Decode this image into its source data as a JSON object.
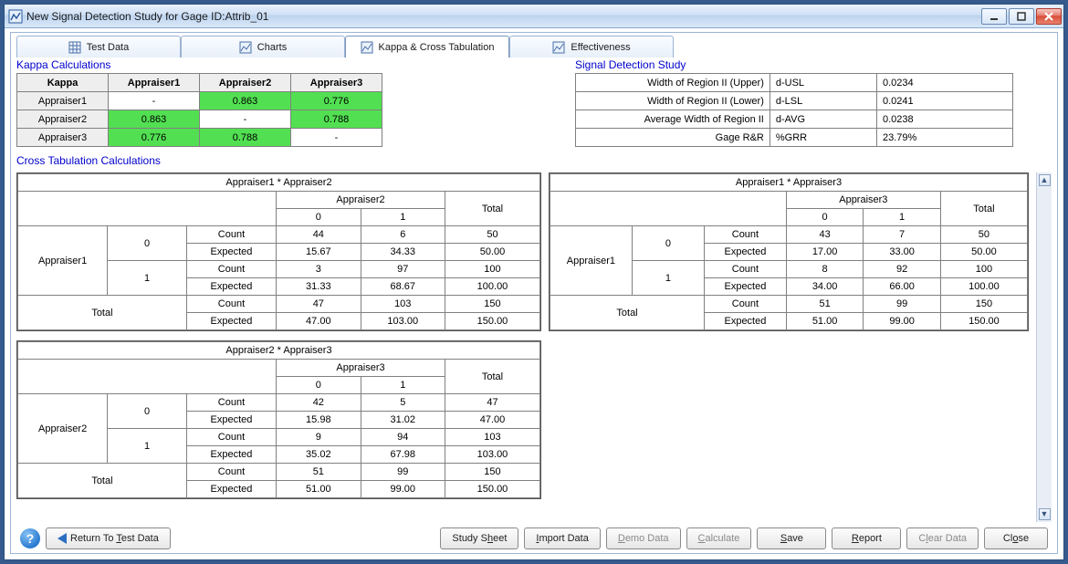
{
  "window": {
    "title": "New Signal Detection Study for Gage ID:Attrib_01"
  },
  "tabs": {
    "test_data": "Test Data",
    "charts": "Charts",
    "kappa": "Kappa & Cross Tabulation",
    "effectiveness": "Effectiveness"
  },
  "sections": {
    "kappa_calc": "Kappa Calculations",
    "sds": "Signal Detection Study",
    "cross": "Cross Tabulation Calculations"
  },
  "kappa": {
    "header": "Kappa",
    "appraisers": [
      "Appraiser1",
      "Appraiser2",
      "Appraiser3"
    ],
    "matrix": [
      [
        "-",
        "0.863",
        "0.776"
      ],
      [
        "0.863",
        "-",
        "0.788"
      ],
      [
        "0.776",
        "0.788",
        "-"
      ]
    ],
    "highlight": [
      [
        false,
        true,
        true
      ],
      [
        true,
        false,
        true
      ],
      [
        true,
        true,
        false
      ]
    ],
    "hl_color": "#52e052"
  },
  "sds": {
    "rows": [
      {
        "label": "Width of Region II (Upper)",
        "code": "d-USL",
        "value": "0.0234"
      },
      {
        "label": "Width of Region II (Lower)",
        "code": "d-LSL",
        "value": "0.0241"
      },
      {
        "label": "Average Width of Region II",
        "code": "d-AVG",
        "value": "0.0238"
      },
      {
        "label": "Gage R&R",
        "code": "%GRR",
        "value": "23.79%"
      }
    ]
  },
  "ctabs": {
    "labels": {
      "count": "Count",
      "expected": "Expected",
      "total": "Total"
    },
    "tables": [
      {
        "title": "Appraiser1 * Appraiser2",
        "row_appr": "Appraiser1",
        "col_appr": "Appraiser2",
        "cats": [
          "0",
          "1"
        ],
        "data": {
          "0": {
            "count": [
              "44",
              "6",
              "50"
            ],
            "expected": [
              "15.67",
              "34.33",
              "50.00"
            ]
          },
          "1": {
            "count": [
              "3",
              "97",
              "100"
            ],
            "expected": [
              "31.33",
              "68.67",
              "100.00"
            ]
          },
          "total": {
            "count": [
              "47",
              "103",
              "150"
            ],
            "expected": [
              "47.00",
              "103.00",
              "150.00"
            ]
          }
        }
      },
      {
        "title": "Appraiser1 * Appraiser3",
        "row_appr": "Appraiser1",
        "col_appr": "Appraiser3",
        "cats": [
          "0",
          "1"
        ],
        "data": {
          "0": {
            "count": [
              "43",
              "7",
              "50"
            ],
            "expected": [
              "17.00",
              "33.00",
              "50.00"
            ]
          },
          "1": {
            "count": [
              "8",
              "92",
              "100"
            ],
            "expected": [
              "34.00",
              "66.00",
              "100.00"
            ]
          },
          "total": {
            "count": [
              "51",
              "99",
              "150"
            ],
            "expected": [
              "51.00",
              "99.00",
              "150.00"
            ]
          }
        }
      },
      {
        "title": "Appraiser2 * Appraiser3",
        "row_appr": "Appraiser2",
        "col_appr": "Appraiser3",
        "cats": [
          "0",
          "1"
        ],
        "data": {
          "0": {
            "count": [
              "42",
              "5",
              "47"
            ],
            "expected": [
              "15.98",
              "31.02",
              "47.00"
            ]
          },
          "1": {
            "count": [
              "9",
              "94",
              "103"
            ],
            "expected": [
              "35.02",
              "67.98",
              "103.00"
            ]
          },
          "total": {
            "count": [
              "51",
              "99",
              "150"
            ],
            "expected": [
              "51.00",
              "99.00",
              "150.00"
            ]
          }
        }
      }
    ]
  },
  "buttons": {
    "return": "Return To Test Data",
    "study_sheet": "Study Sheet",
    "import_data": "Import Data",
    "demo_data": "Demo Data",
    "calculate": "Calculate",
    "save": "Save",
    "report": "Report",
    "clear_data": "Clear Data",
    "close": "Close"
  }
}
